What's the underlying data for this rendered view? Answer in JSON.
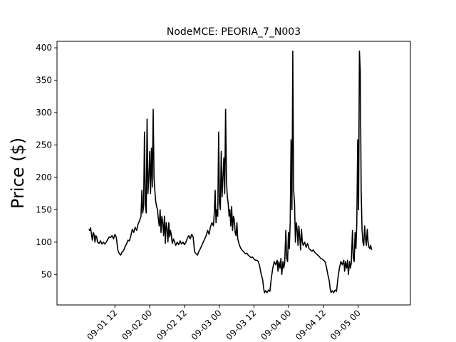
{
  "chart_data": {
    "type": "line",
    "title": "NodeMCE: PEORIA_7_N003",
    "xlabel": "",
    "ylabel": "Price ($)",
    "xlim_hours": [
      -8,
      114
    ],
    "ylim": [
      3,
      410
    ],
    "x_ticks": [
      {
        "label": "09-01 12",
        "hour": 12
      },
      {
        "label": "09-02 00",
        "hour": 24
      },
      {
        "label": "09-02 12",
        "hour": 36
      },
      {
        "label": "09-03 00",
        "hour": 48
      },
      {
        "label": "09-03 12",
        "hour": 60
      },
      {
        "label": "09-04 00",
        "hour": 72
      },
      {
        "label": "09-04 12",
        "hour": 84
      },
      {
        "label": "09-05 00",
        "hour": 96
      }
    ],
    "y_ticks": [
      50,
      100,
      150,
      200,
      250,
      300,
      350,
      400
    ],
    "series": [
      {
        "color": "#000000",
        "points": [
          [
            3.0,
            120
          ],
          [
            3.3,
            118
          ],
          [
            3.6,
            122
          ],
          [
            3.9,
            112
          ],
          [
            4.2,
            103
          ],
          [
            4.5,
            115
          ],
          [
            4.8,
            112
          ],
          [
            5.1,
            100
          ],
          [
            5.4,
            110
          ],
          [
            5.7,
            108
          ],
          [
            6.0,
            100
          ],
          [
            6.5,
            98
          ],
          [
            7.0,
            102
          ],
          [
            7.5,
            97
          ],
          [
            8.0,
            100
          ],
          [
            8.5,
            97
          ],
          [
            9.0,
            100
          ],
          [
            9.5,
            104
          ],
          [
            10.0,
            108
          ],
          [
            10.5,
            107
          ],
          [
            11.0,
            110
          ],
          [
            11.5,
            105
          ],
          [
            12.0,
            112
          ],
          [
            12.5,
            107
          ],
          [
            13.0,
            88
          ],
          [
            13.5,
            82
          ],
          [
            14.0,
            80
          ],
          [
            14.5,
            85
          ],
          [
            15.0,
            87
          ],
          [
            15.5,
            93
          ],
          [
            16.0,
            97
          ],
          [
            16.5,
            103
          ],
          [
            17.0,
            102
          ],
          [
            17.5,
            110
          ],
          [
            18.0,
            120
          ],
          [
            18.5,
            115
          ],
          [
            19.0,
            123
          ],
          [
            19.5,
            118
          ],
          [
            20.0,
            128
          ],
          [
            20.5,
            133
          ],
          [
            21.0,
            140
          ],
          [
            21.3,
            180
          ],
          [
            21.6,
            145
          ],
          [
            21.9,
            155
          ],
          [
            22.2,
            270
          ],
          [
            22.5,
            160
          ],
          [
            22.8,
            145
          ],
          [
            23.1,
            290
          ],
          [
            23.4,
            175
          ],
          [
            23.7,
            200
          ],
          [
            24.0,
            240
          ],
          [
            24.3,
            175
          ],
          [
            24.6,
            245
          ],
          [
            24.9,
            185
          ],
          [
            25.2,
            305
          ],
          [
            25.5,
            200
          ],
          [
            25.8,
            178
          ],
          [
            26.1,
            162
          ],
          [
            26.4,
            155
          ],
          [
            26.7,
            150
          ],
          [
            27.0,
            135
          ],
          [
            27.3,
            125
          ],
          [
            27.6,
            150
          ],
          [
            27.9,
            115
          ],
          [
            28.2,
            140
          ],
          [
            28.5,
            130
          ],
          [
            28.8,
            110
          ],
          [
            29.1,
            140
          ],
          [
            29.4,
            98
          ],
          [
            29.7,
            130
          ],
          [
            30.0,
            120
          ],
          [
            30.3,
            100
          ],
          [
            30.6,
            130
          ],
          [
            30.9,
            108
          ],
          [
            31.2,
            118
          ],
          [
            31.5,
            110
          ],
          [
            31.8,
            98
          ],
          [
            32.2,
            105
          ],
          [
            32.6,
            100
          ],
          [
            33.0,
            95
          ],
          [
            33.5,
            100
          ],
          [
            34.0,
            96
          ],
          [
            34.5,
            102
          ],
          [
            35.0,
            97
          ],
          [
            35.5,
            100
          ],
          [
            36.0,
            96
          ],
          [
            36.5,
            100
          ],
          [
            37.0,
            106
          ],
          [
            37.5,
            110
          ],
          [
            38.0,
            105
          ],
          [
            38.5,
            112
          ],
          [
            39.0,
            108
          ],
          [
            39.5,
            85
          ],
          [
            40.0,
            82
          ],
          [
            40.5,
            80
          ],
          [
            41.0,
            86
          ],
          [
            41.5,
            90
          ],
          [
            42.0,
            95
          ],
          [
            42.5,
            100
          ],
          [
            43.0,
            105
          ],
          [
            43.5,
            110
          ],
          [
            44.0,
            118
          ],
          [
            44.5,
            112
          ],
          [
            45.0,
            124
          ],
          [
            45.5,
            130
          ],
          [
            46.0,
            125
          ],
          [
            46.3,
            145
          ],
          [
            46.6,
            180
          ],
          [
            46.9,
            130
          ],
          [
            47.2,
            150
          ],
          [
            47.5,
            140
          ],
          [
            47.8,
            270
          ],
          [
            48.1,
            160
          ],
          [
            48.4,
            150
          ],
          [
            48.7,
            240
          ],
          [
            49.0,
            170
          ],
          [
            49.3,
            200
          ],
          [
            49.6,
            230
          ],
          [
            49.9,
            175
          ],
          [
            50.2,
            305
          ],
          [
            50.5,
            195
          ],
          [
            50.8,
            170
          ],
          [
            51.1,
            160
          ],
          [
            51.4,
            140
          ],
          [
            51.7,
            150
          ],
          [
            52.0,
            125
          ],
          [
            52.3,
            155
          ],
          [
            52.6,
            118
          ],
          [
            52.9,
            140
          ],
          [
            53.2,
            135
          ],
          [
            53.5,
            115
          ],
          [
            53.8,
            110
          ],
          [
            54.1,
            130
          ],
          [
            54.4,
            105
          ],
          [
            54.7,
            100
          ],
          [
            55.0,
            95
          ],
          [
            55.5,
            90
          ],
          [
            56.0,
            87
          ],
          [
            56.5,
            85
          ],
          [
            57.0,
            82
          ],
          [
            57.5,
            83
          ],
          [
            58.0,
            80
          ],
          [
            58.5,
            78
          ],
          [
            59.0,
            76
          ],
          [
            59.5,
            77
          ],
          [
            60.0,
            74
          ],
          [
            60.5,
            72
          ],
          [
            61.0,
            72
          ],
          [
            61.5,
            70
          ],
          [
            62.0,
            62
          ],
          [
            62.5,
            50
          ],
          [
            63.0,
            42
          ],
          [
            63.3,
            30
          ],
          [
            63.6,
            22
          ],
          [
            64.0,
            25
          ],
          [
            64.5,
            22
          ],
          [
            65.0,
            26
          ],
          [
            65.5,
            24
          ],
          [
            66.0,
            45
          ],
          [
            66.5,
            60
          ],
          [
            67.0,
            70
          ],
          [
            67.5,
            65
          ],
          [
            68.0,
            72
          ],
          [
            68.3,
            55
          ],
          [
            68.6,
            70
          ],
          [
            69.0,
            60
          ],
          [
            69.3,
            75
          ],
          [
            69.6,
            50
          ],
          [
            70.0,
            70
          ],
          [
            70.3,
            60
          ],
          [
            70.6,
            68
          ],
          [
            71.0,
            118
          ],
          [
            71.3,
            75
          ],
          [
            71.6,
            70
          ],
          [
            71.9,
            115
          ],
          [
            72.2,
            90
          ],
          [
            72.5,
            130
          ],
          [
            72.8,
            258
          ],
          [
            73.1,
            150
          ],
          [
            73.4,
            395
          ],
          [
            73.7,
            180
          ],
          [
            74.0,
            160
          ],
          [
            74.3,
            100
          ],
          [
            74.6,
            130
          ],
          [
            74.9,
            120
          ],
          [
            75.2,
            95
          ],
          [
            75.5,
            125
          ],
          [
            75.8,
            108
          ],
          [
            76.1,
            88
          ],
          [
            76.4,
            120
          ],
          [
            76.7,
            100
          ],
          [
            77.0,
            95
          ],
          [
            77.5,
            100
          ],
          [
            78.0,
            92
          ],
          [
            78.5,
            98
          ],
          [
            79.0,
            90
          ],
          [
            79.5,
            88
          ],
          [
            80.0,
            86
          ],
          [
            80.5,
            88
          ],
          [
            81.0,
            84
          ],
          [
            81.5,
            82
          ],
          [
            82.0,
            80
          ],
          [
            82.5,
            78
          ],
          [
            83.0,
            75
          ],
          [
            83.5,
            74
          ],
          [
            84.0,
            72
          ],
          [
            84.5,
            70
          ],
          [
            85.0,
            62
          ],
          [
            85.5,
            50
          ],
          [
            86.0,
            40
          ],
          [
            86.3,
            28
          ],
          [
            86.6,
            22
          ],
          [
            87.0,
            25
          ],
          [
            87.5,
            22
          ],
          [
            88.0,
            26
          ],
          [
            88.5,
            24
          ],
          [
            89.0,
            45
          ],
          [
            89.5,
            60
          ],
          [
            90.0,
            70
          ],
          [
            90.5,
            65
          ],
          [
            91.0,
            72
          ],
          [
            91.3,
            55
          ],
          [
            91.6,
            70
          ],
          [
            92.0,
            60
          ],
          [
            92.3,
            72
          ],
          [
            92.6,
            50
          ],
          [
            93.0,
            70
          ],
          [
            93.3,
            60
          ],
          [
            93.6,
            68
          ],
          [
            94.0,
            118
          ],
          [
            94.3,
            75
          ],
          [
            94.6,
            70
          ],
          [
            94.9,
            115
          ],
          [
            95.2,
            90
          ],
          [
            95.5,
            130
          ],
          [
            95.8,
            258
          ],
          [
            96.1,
            150
          ],
          [
            96.4,
            395
          ],
          [
            96.7,
            365
          ],
          [
            97.0,
            180
          ],
          [
            97.3,
            120
          ],
          [
            97.6,
            100
          ],
          [
            97.9,
            95
          ],
          [
            98.2,
            125
          ],
          [
            98.5,
            105
          ],
          [
            98.8,
            95
          ],
          [
            99.1,
            120
          ],
          [
            99.4,
            100
          ],
          [
            99.7,
            92
          ],
          [
            100.0,
            90
          ],
          [
            100.3,
            95
          ],
          [
            100.6,
            88
          ]
        ]
      }
    ]
  }
}
